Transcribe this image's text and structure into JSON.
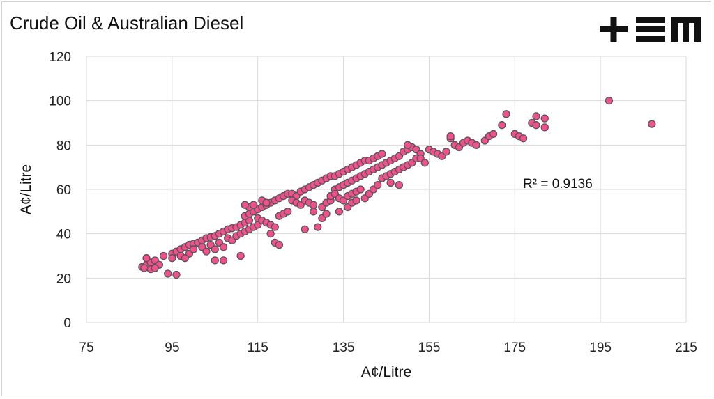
{
  "header": {
    "title": "Crude Oil & Australian Diesel",
    "logo_text": "+EM",
    "logo_icon": "tem-logo-icon",
    "logo_color": "#111111"
  },
  "chart_data": {
    "type": "scatter",
    "title": "Crude Oil & Australian Diesel",
    "xlabel": "A¢/Litre",
    "ylabel": "A¢/Litre",
    "xlim": [
      75,
      215
    ],
    "ylim": [
      0,
      120
    ],
    "xticks": [
      75,
      95,
      115,
      135,
      155,
      175,
      195,
      215
    ],
    "yticks": [
      0,
      20,
      40,
      60,
      80,
      100,
      120
    ],
    "grid": true,
    "legend": "none",
    "annotation": "R² = 0.9136",
    "marker_fill": "#f0508c",
    "marker_edge": "#555555",
    "points": [
      [
        88,
        25
      ],
      [
        89,
        26
      ],
      [
        90,
        27
      ],
      [
        91,
        28
      ],
      [
        89,
        29
      ],
      [
        90,
        24
      ],
      [
        88.5,
        24.5
      ],
      [
        92,
        26
      ],
      [
        91,
        24.5
      ],
      [
        94,
        22
      ],
      [
        96,
        21.5
      ],
      [
        93,
        30
      ],
      [
        95,
        31
      ],
      [
        96,
        32
      ],
      [
        97,
        33
      ],
      [
        98,
        34
      ],
      [
        99,
        35
      ],
      [
        100,
        35.5
      ],
      [
        95,
        29
      ],
      [
        97,
        30
      ],
      [
        99,
        31
      ],
      [
        98,
        29
      ],
      [
        101,
        36
      ],
      [
        102,
        37
      ],
      [
        103,
        38
      ],
      [
        104,
        38.5
      ],
      [
        105,
        39
      ],
      [
        100,
        33
      ],
      [
        102,
        34
      ],
      [
        104,
        35
      ],
      [
        106,
        36
      ],
      [
        103,
        32
      ],
      [
        105,
        33
      ],
      [
        107,
        34
      ],
      [
        105,
        28
      ],
      [
        107,
        28
      ],
      [
        106,
        40
      ],
      [
        107,
        41
      ],
      [
        108,
        42
      ],
      [
        109,
        42.5
      ],
      [
        110,
        43
      ],
      [
        111,
        44
      ],
      [
        112,
        45
      ],
      [
        113,
        46
      ],
      [
        108,
        38
      ],
      [
        109,
        37
      ],
      [
        110,
        39
      ],
      [
        111,
        40
      ],
      [
        112,
        41
      ],
      [
        113,
        42
      ],
      [
        114,
        43
      ],
      [
        115,
        44
      ],
      [
        111,
        30
      ],
      [
        112,
        48
      ],
      [
        113,
        49
      ],
      [
        114,
        50
      ],
      [
        115,
        51
      ],
      [
        116,
        52
      ],
      [
        117,
        53
      ],
      [
        118,
        54
      ],
      [
        113,
        52
      ],
      [
        114,
        53
      ],
      [
        116,
        55
      ],
      [
        117,
        54
      ],
      [
        112,
        53
      ],
      [
        115,
        47
      ],
      [
        116,
        46
      ],
      [
        117,
        45
      ],
      [
        118,
        44
      ],
      [
        119,
        43
      ],
      [
        118,
        40
      ],
      [
        119,
        36
      ],
      [
        120,
        35
      ],
      [
        120,
        48
      ],
      [
        121,
        49
      ],
      [
        122,
        50
      ],
      [
        119,
        55
      ],
      [
        120,
        56
      ],
      [
        121,
        57
      ],
      [
        122,
        58
      ],
      [
        123,
        58
      ],
      [
        124,
        57
      ],
      [
        123,
        55
      ],
      [
        124,
        54
      ],
      [
        125,
        53
      ],
      [
        125,
        59
      ],
      [
        126,
        60
      ],
      [
        127,
        61
      ],
      [
        128,
        62
      ],
      [
        126,
        55
      ],
      [
        127,
        54
      ],
      [
        128,
        53
      ],
      [
        126,
        42
      ],
      [
        129,
        43
      ],
      [
        130,
        47
      ],
      [
        131,
        49
      ],
      [
        128,
        50
      ],
      [
        130,
        52
      ],
      [
        131,
        54
      ],
      [
        132,
        55
      ],
      [
        129,
        63
      ],
      [
        130,
        64
      ],
      [
        131,
        65
      ],
      [
        132,
        66
      ],
      [
        133,
        66
      ],
      [
        134,
        67
      ],
      [
        135,
        68
      ],
      [
        136,
        69
      ],
      [
        133,
        60
      ],
      [
        134,
        61
      ],
      [
        135,
        62
      ],
      [
        136,
        63
      ],
      [
        137,
        64
      ],
      [
        138,
        65
      ],
      [
        139,
        66
      ],
      [
        140,
        67
      ],
      [
        132,
        57
      ],
      [
        133,
        58
      ],
      [
        134,
        56
      ],
      [
        135,
        55
      ],
      [
        136,
        57
      ],
      [
        137,
        58
      ],
      [
        138,
        59
      ],
      [
        139,
        60
      ],
      [
        134,
        50
      ],
      [
        136,
        52
      ],
      [
        137,
        54
      ],
      [
        138,
        55
      ],
      [
        140,
        56
      ],
      [
        141,
        58
      ],
      [
        142,
        60
      ],
      [
        143,
        62
      ],
      [
        137,
        70
      ],
      [
        138,
        71
      ],
      [
        139,
        72
      ],
      [
        140,
        73
      ],
      [
        141,
        73
      ],
      [
        142,
        74
      ],
      [
        143,
        75
      ],
      [
        144,
        76
      ],
      [
        141,
        68
      ],
      [
        142,
        69
      ],
      [
        143,
        70
      ],
      [
        144,
        71
      ],
      [
        145,
        72
      ],
      [
        146,
        73
      ],
      [
        147,
        74
      ],
      [
        148,
        75
      ],
      [
        144,
        65
      ],
      [
        145,
        66
      ],
      [
        146,
        67
      ],
      [
        147,
        68
      ],
      [
        148,
        69
      ],
      [
        149,
        70
      ],
      [
        150,
        71
      ],
      [
        151,
        72
      ],
      [
        146,
        63
      ],
      [
        148,
        62
      ],
      [
        149,
        77
      ],
      [
        150,
        78
      ],
      [
        151,
        79
      ],
      [
        152,
        78
      ],
      [
        153,
        76
      ],
      [
        152,
        74
      ],
      [
        150,
        80
      ],
      [
        153,
        74
      ],
      [
        154,
        72
      ],
      [
        155,
        78
      ],
      [
        156,
        77
      ],
      [
        157,
        76
      ],
      [
        158,
        75
      ],
      [
        159,
        77
      ],
      [
        160,
        83
      ],
      [
        160,
        84
      ],
      [
        161,
        80
      ],
      [
        162,
        79
      ],
      [
        163,
        81
      ],
      [
        164,
        82
      ],
      [
        165,
        81
      ],
      [
        166,
        80
      ],
      [
        168,
        82
      ],
      [
        169,
        84
      ],
      [
        170,
        85
      ],
      [
        172,
        89
      ],
      [
        173,
        94
      ],
      [
        175,
        85
      ],
      [
        176,
        84
      ],
      [
        177,
        83
      ],
      [
        179,
        90
      ],
      [
        180,
        89
      ],
      [
        180,
        93
      ],
      [
        182,
        88
      ],
      [
        182,
        92
      ],
      [
        197,
        100
      ],
      [
        207,
        89.5
      ]
    ]
  }
}
